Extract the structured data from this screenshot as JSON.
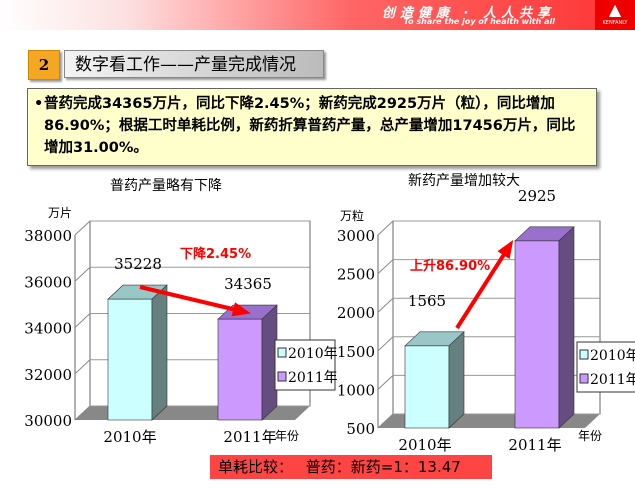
{
  "banner": {
    "slogan_cn": "创造健康 · 人人共享",
    "slogan_en": "To share the joy of health with all",
    "logo_text": "KENFANLY"
  },
  "section_number": "2",
  "title": "数字看工作——产量完成情况",
  "summary": "普药完成34365万片，同比下降2.45%；新药完成2925万片（粒），同比增加86.90%；根据工时单耗比例，新药折算普药产量，总产量增加17456万片，同比增加31.00%。",
  "footer": "单耗比较：  普药：新药=1：13.47",
  "colors": {
    "bar_2010": "#ccffff",
    "bar_2011": "#cc99ff",
    "arrow": "#ff0000",
    "banner": "#ff3333",
    "footer": "#ff4444"
  },
  "chart_data": [
    {
      "type": "bar",
      "title": "普药产量略有下降",
      "categories": [
        "2010年",
        "2011年"
      ],
      "values": [
        35228,
        34365
      ],
      "ylabel": "万片",
      "xlabel": "年份",
      "ylim": [
        30000,
        38000
      ],
      "yticks": [
        "30000",
        "32000",
        "34000",
        "36000",
        "38000"
      ],
      "legend": [
        "2010年",
        "2011年"
      ],
      "legend_position": "right",
      "annotation": "下降2.45%",
      "value_labels": [
        "35228",
        "34365"
      ],
      "grid": true
    },
    {
      "type": "bar",
      "title": "新药产量增加较大",
      "categories": [
        "2010年",
        "2011年"
      ],
      "values": [
        1565,
        2925
      ],
      "ylabel": "万粒",
      "xlabel": "年份",
      "ylim": [
        500,
        3000
      ],
      "yticks": [
        "500",
        "1000",
        "1500",
        "2000",
        "2500",
        "3000"
      ],
      "legend": [
        "2010年",
        "2011年"
      ],
      "legend_position": "right",
      "annotation": "上升86.90%",
      "value_labels": [
        "1565",
        "2925"
      ],
      "grid": true
    }
  ]
}
